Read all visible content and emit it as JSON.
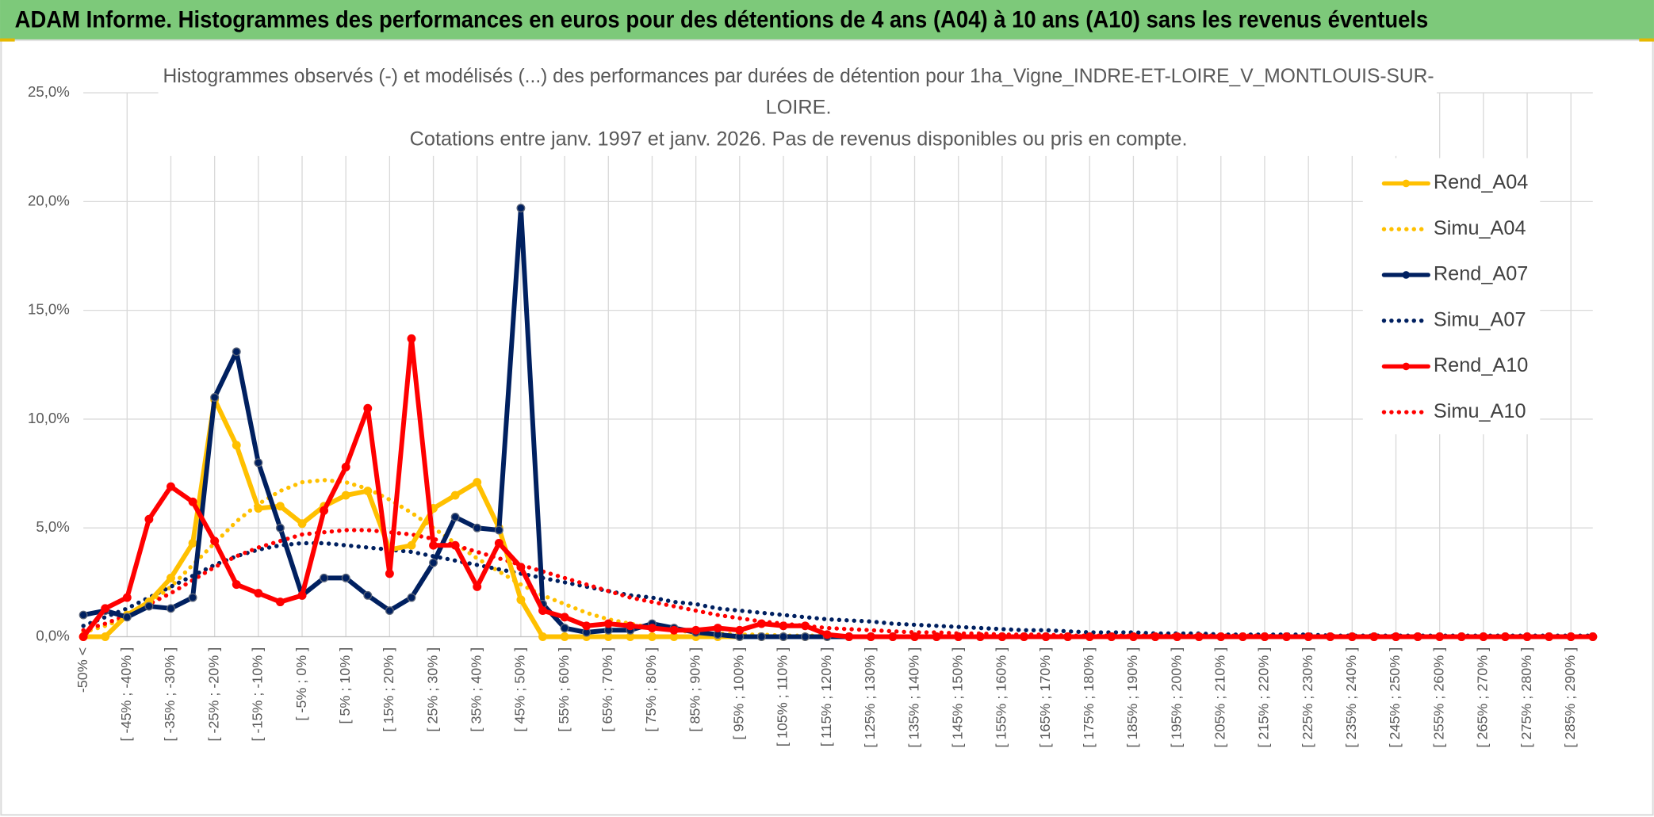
{
  "header": {
    "title": "ADAM Informe. Histogrammes des performances en euros pour des détentions de 4 ans (A04) à 10 ans (A10) sans les revenus éventuels"
  },
  "chart_data": {
    "type": "line",
    "title_lines": [
      "Histogrammes observés (-) et modélisés (...) des performances par durées de détention pour 1ha_Vigne_INDRE-ET-LOIRE_V_MONTLOUIS-SUR-",
      "LOIRE.",
      "Cotations entre janv. 1997 et janv. 2026. Pas de revenus disponibles ou pris en compte."
    ],
    "categories": [
      "-50% <",
      null,
      "[ -45% ; -40% ]",
      null,
      "[ -35% ; -30% ]",
      null,
      "[ -25% ; -20% ]",
      null,
      "[ -15% ; -10% ]",
      null,
      "[ -5% ; 0% ]",
      null,
      "[ 5% ; 10% ]",
      null,
      "[ 15% ; 20% ]",
      null,
      "[ 25% ; 30% ]",
      null,
      "[ 35% ; 40% ]",
      null,
      "[ 45% ; 50% ]",
      null,
      "[ 55% ; 60% ]",
      null,
      "[ 65% ; 70% ]",
      null,
      "[ 75% ; 80% ]",
      null,
      "[ 85% ; 90% ]",
      null,
      "[ 95% ; 100% ]",
      null,
      "[ 105% ; 110% ]",
      null,
      "[ 115% ; 120% ]",
      null,
      "[ 125% ; 130% ]",
      null,
      "[ 135% ; 140% ]",
      null,
      "[ 145% ; 150% ]",
      null,
      "[ 155% ; 160% ]",
      null,
      "[ 165% ; 170% ]",
      null,
      "[ 175% ; 180% ]",
      null,
      "[ 185% ; 190% ]",
      null,
      "[ 195% ; 200% ]",
      null,
      "[ 205% ; 210% ]",
      null,
      "[ 215% ; 220% ]",
      null,
      "[ 225% ; 230% ]",
      null,
      "[ 235% ; 240% ]",
      null,
      "[ 245% ; 250% ]",
      null,
      "[ 255% ; 260% ]",
      null,
      "[ 265% ; 270% ]",
      null,
      "[ 275% ; 280% ]",
      null,
      "[ 285% ; 290% ]",
      null
    ],
    "series": [
      {
        "name": "Rend_A04",
        "color": "#ffc000",
        "style": "solid",
        "values": [
          0,
          0,
          1.0,
          1.6,
          2.7,
          4.3,
          10.9,
          8.8,
          5.9,
          6.0,
          5.2,
          6.0,
          6.5,
          6.7,
          4.0,
          4.2,
          5.9,
          6.5,
          7.1,
          5.0,
          1.7,
          0,
          0,
          0,
          0,
          0,
          0,
          0,
          0,
          0,
          0,
          0,
          0,
          0,
          0,
          0,
          0,
          0,
          0,
          0,
          0,
          0,
          0,
          0,
          0,
          0,
          0,
          0,
          0,
          0,
          0,
          0,
          0,
          0,
          0,
          0,
          0,
          0,
          0,
          0,
          0,
          0,
          0,
          0,
          0,
          0,
          0,
          0,
          0,
          0
        ]
      },
      {
        "name": "Simu_A04",
        "color": "#ffc000",
        "style": "dotted",
        "values": [
          0.2,
          0.5,
          0.9,
          1.5,
          2.3,
          3.3,
          4.3,
          5.3,
          6.1,
          6.7,
          7.1,
          7.2,
          7.1,
          6.8,
          6.3,
          5.7,
          5.0,
          4.3,
          3.6,
          3.0,
          2.4,
          1.9,
          1.5,
          1.1,
          0.8,
          0.6,
          0.4,
          0.3,
          0.2,
          0.15,
          0.1,
          0.1,
          0.05,
          0.05,
          0.05,
          0,
          0,
          0,
          0,
          0,
          0,
          0,
          0,
          0,
          0,
          0,
          0,
          0,
          0,
          0,
          0,
          0,
          0,
          0,
          0,
          0,
          0,
          0,
          0,
          0,
          0,
          0,
          0,
          0,
          0,
          0,
          0,
          0,
          0,
          0
        ]
      },
      {
        "name": "Rend_A07",
        "color": "#002060",
        "style": "solid",
        "values": [
          1.0,
          1.2,
          0.9,
          1.4,
          1.3,
          1.8,
          11.0,
          13.1,
          8.0,
          5.0,
          1.9,
          2.7,
          2.7,
          1.9,
          1.2,
          1.8,
          3.4,
          5.5,
          5.0,
          4.9,
          19.7,
          1.5,
          0.4,
          0.2,
          0.3,
          0.3,
          0.6,
          0.4,
          0.2,
          0.1,
          0,
          0,
          0,
          0,
          0,
          0,
          0,
          0,
          0,
          0,
          0,
          0,
          0,
          0,
          0,
          0,
          0,
          0,
          0,
          0,
          0,
          0,
          0,
          0,
          0,
          0,
          0,
          0,
          0,
          0,
          0,
          0,
          0,
          0,
          0,
          0,
          0,
          0,
          0,
          0
        ]
      },
      {
        "name": "Simu_A07",
        "color": "#002060",
        "style": "dotted",
        "values": [
          0.5,
          0.9,
          1.3,
          1.8,
          2.3,
          2.8,
          3.3,
          3.7,
          4.0,
          4.2,
          4.3,
          4.3,
          4.2,
          4.1,
          4.0,
          3.9,
          3.7,
          3.5,
          3.3,
          3.1,
          2.9,
          2.7,
          2.5,
          2.3,
          2.1,
          1.9,
          1.8,
          1.6,
          1.5,
          1.3,
          1.2,
          1.1,
          1.0,
          0.9,
          0.8,
          0.75,
          0.7,
          0.6,
          0.55,
          0.5,
          0.45,
          0.4,
          0.35,
          0.3,
          0.3,
          0.25,
          0.2,
          0.2,
          0.2,
          0.15,
          0.15,
          0.15,
          0.1,
          0.1,
          0.1,
          0.1,
          0.1,
          0.05,
          0.05,
          0.05,
          0.05,
          0.05,
          0.05,
          0.05,
          0.05,
          0.05,
          0.05,
          0.05,
          0.05,
          0.05
        ]
      },
      {
        "name": "Rend_A10",
        "color": "#ff0000",
        "style": "solid",
        "values": [
          0,
          1.3,
          1.8,
          5.4,
          6.9,
          6.2,
          4.4,
          2.4,
          2.0,
          1.6,
          1.9,
          5.8,
          7.8,
          10.5,
          2.9,
          13.7,
          4.2,
          4.2,
          2.3,
          4.3,
          3.2,
          1.2,
          0.9,
          0.5,
          0.6,
          0.5,
          0.4,
          0.3,
          0.3,
          0.4,
          0.3,
          0.6,
          0.5,
          0.5,
          0.1,
          0,
          0,
          0,
          0,
          0,
          0,
          0,
          0,
          0,
          0,
          0,
          0,
          0,
          0,
          0,
          0,
          0,
          0,
          0,
          0,
          0,
          0,
          0,
          0,
          0,
          0,
          0,
          0,
          0,
          0,
          0,
          0,
          0,
          0,
          0
        ]
      },
      {
        "name": "Simu_A10",
        "color": "#ff0000",
        "style": "dotted",
        "values": [
          0.3,
          0.6,
          1.0,
          1.5,
          2.0,
          2.6,
          3.2,
          3.7,
          4.1,
          4.4,
          4.7,
          4.8,
          4.9,
          4.9,
          4.8,
          4.7,
          4.5,
          4.2,
          3.9,
          3.6,
          3.3,
          3.0,
          2.7,
          2.4,
          2.1,
          1.8,
          1.6,
          1.4,
          1.2,
          1.0,
          0.85,
          0.7,
          0.6,
          0.5,
          0.4,
          0.35,
          0.3,
          0.25,
          0.2,
          0.2,
          0.15,
          0.15,
          0.1,
          0.1,
          0.1,
          0.05,
          0.05,
          0.05,
          0.05,
          0.05,
          0.05,
          0.05,
          0.05,
          0.05,
          0.05,
          0,
          0,
          0,
          0,
          0,
          0,
          0,
          0,
          0,
          0,
          0,
          0,
          0,
          0,
          0
        ]
      }
    ],
    "ylim": [
      0,
      25
    ],
    "yticks": [
      {
        "value": 0,
        "label": "0,0%"
      },
      {
        "value": 5,
        "label": "5,0%"
      },
      {
        "value": 10,
        "label": "10,0%"
      },
      {
        "value": 15,
        "label": "15,0%"
      },
      {
        "value": 20,
        "label": "20,0%"
      },
      {
        "value": 25,
        "label": "25,0%"
      }
    ],
    "grid": true,
    "legend": "right"
  }
}
